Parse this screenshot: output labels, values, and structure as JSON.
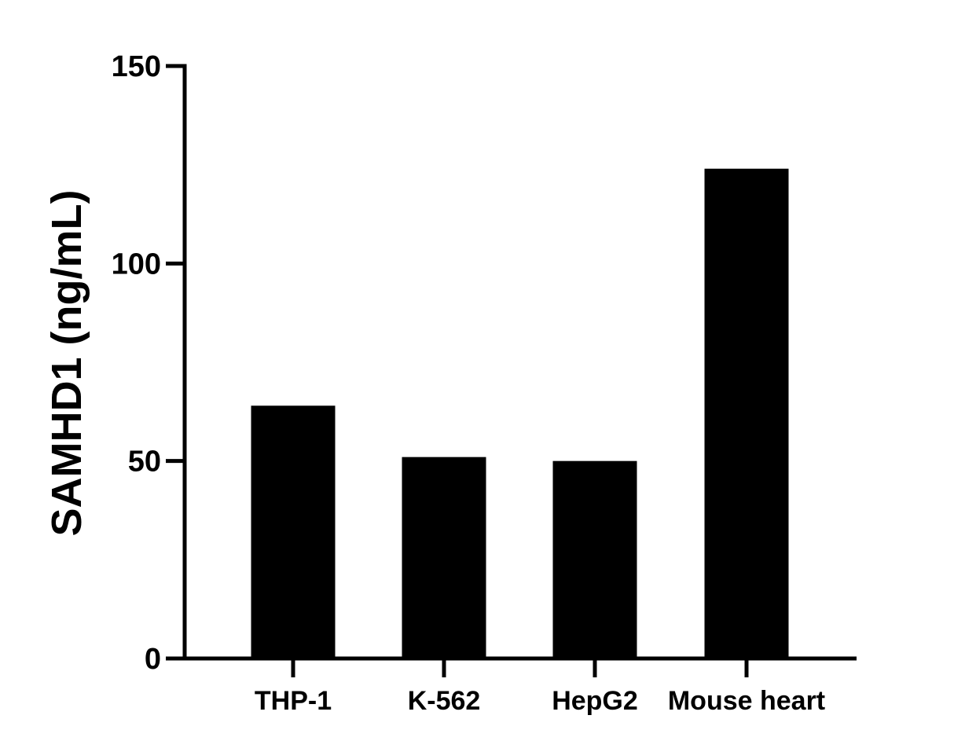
{
  "chart_data": {
    "type": "bar",
    "title": "",
    "xlabel": "",
    "ylabel": "SAMHD1 (ng/mL)",
    "categories": [
      "THP-1",
      "K-562",
      "HepG2",
      "Mouse heart"
    ],
    "values": [
      64,
      51,
      50,
      124
    ],
    "ylim": [
      0,
      150
    ],
    "yticks": [
      0,
      50,
      100,
      150
    ],
    "ytick_labels": [
      "0",
      "50",
      "100",
      "150"
    ],
    "grid": false,
    "legend": "none",
    "bar_color": "#000000",
    "axis_color": "#000000"
  }
}
